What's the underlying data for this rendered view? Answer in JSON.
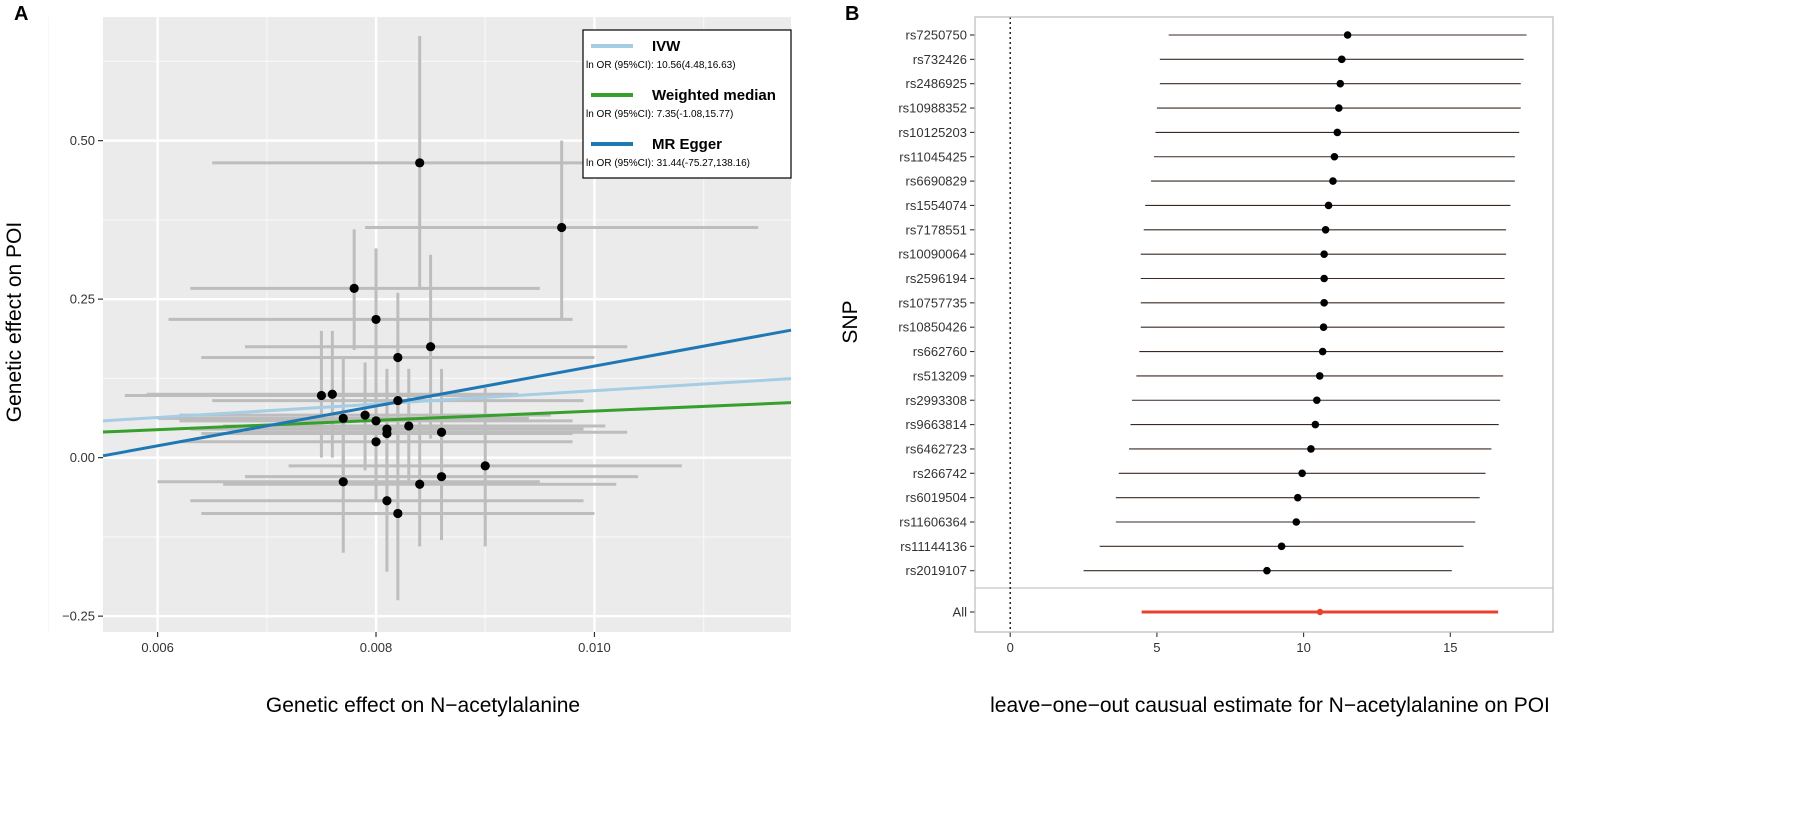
{
  "chart_data": [
    {
      "panel": "A",
      "type": "scatter",
      "xlabel": "Genetic effect on N−acetylalanine",
      "ylabel": "Genetic effect on POI",
      "xlim": [
        0.0055,
        0.0118
      ],
      "ylim": [
        -0.275,
        0.695
      ],
      "xticks": [
        0.006,
        0.008,
        0.01
      ],
      "xtick_labels": [
        "0.006",
        "0.008",
        "0.010"
      ],
      "yticks": [
        -0.25,
        0.0,
        0.25,
        0.5
      ],
      "ytick_labels": [
        "−0.25",
        "0.00",
        "0.25",
        "0.50"
      ],
      "points": [
        {
          "x": 0.0084,
          "y": 0.465,
          "xlo": 0.0065,
          "xhi": 0.0104,
          "ylo": 0.265,
          "yhi": 0.665
        },
        {
          "x": 0.0097,
          "y": 0.363,
          "xlo": 0.0079,
          "xhi": 0.0115,
          "ylo": 0.22,
          "yhi": 0.5
        },
        {
          "x": 0.0078,
          "y": 0.267,
          "xlo": 0.0063,
          "xhi": 0.0095,
          "ylo": 0.17,
          "yhi": 0.36
        },
        {
          "x": 0.008,
          "y": 0.218,
          "xlo": 0.0061,
          "xhi": 0.0098,
          "ylo": 0.1,
          "yhi": 0.33
        },
        {
          "x": 0.0085,
          "y": 0.175,
          "xlo": 0.0068,
          "xhi": 0.0103,
          "ylo": 0.03,
          "yhi": 0.32
        },
        {
          "x": 0.0082,
          "y": 0.158,
          "xlo": 0.0064,
          "xhi": 0.01,
          "ylo": 0.05,
          "yhi": 0.26
        },
        {
          "x": 0.0075,
          "y": 0.098,
          "xlo": 0.0057,
          "xhi": 0.0093,
          "ylo": 0.0,
          "yhi": 0.2
        },
        {
          "x": 0.0076,
          "y": 0.1,
          "xlo": 0.0059,
          "xhi": 0.0093,
          "ylo": 0.0,
          "yhi": 0.2
        },
        {
          "x": 0.0082,
          "y": 0.09,
          "xlo": 0.0065,
          "xhi": 0.0099,
          "ylo": 0.0,
          "yhi": 0.18
        },
        {
          "x": 0.0079,
          "y": 0.067,
          "xlo": 0.0062,
          "xhi": 0.0096,
          "ylo": -0.02,
          "yhi": 0.15
        },
        {
          "x": 0.0077,
          "y": 0.062,
          "xlo": 0.006,
          "xhi": 0.0094,
          "ylo": -0.03,
          "yhi": 0.16
        },
        {
          "x": 0.008,
          "y": 0.058,
          "xlo": 0.0062,
          "xhi": 0.0098,
          "ylo": -0.04,
          "yhi": 0.15
        },
        {
          "x": 0.0083,
          "y": 0.05,
          "xlo": 0.0066,
          "xhi": 0.0101,
          "ylo": -0.04,
          "yhi": 0.14
        },
        {
          "x": 0.0081,
          "y": 0.045,
          "xlo": 0.0063,
          "xhi": 0.0099,
          "ylo": -0.05,
          "yhi": 0.14
        },
        {
          "x": 0.0081,
          "y": 0.038,
          "xlo": 0.0064,
          "xhi": 0.0098,
          "ylo": -0.06,
          "yhi": 0.13
        },
        {
          "x": 0.0086,
          "y": 0.04,
          "xlo": 0.0068,
          "xhi": 0.0103,
          "ylo": -0.06,
          "yhi": 0.14
        },
        {
          "x": 0.008,
          "y": 0.025,
          "xlo": 0.0062,
          "xhi": 0.0098,
          "ylo": -0.07,
          "yhi": 0.12
        },
        {
          "x": 0.009,
          "y": -0.013,
          "xlo": 0.0072,
          "xhi": 0.0108,
          "ylo": -0.14,
          "yhi": 0.11
        },
        {
          "x": 0.0086,
          "y": -0.03,
          "xlo": 0.0068,
          "xhi": 0.0104,
          "ylo": -0.13,
          "yhi": 0.07
        },
        {
          "x": 0.0077,
          "y": -0.038,
          "xlo": 0.006,
          "xhi": 0.0095,
          "ylo": -0.15,
          "yhi": 0.07
        },
        {
          "x": 0.0084,
          "y": -0.042,
          "xlo": 0.0066,
          "xhi": 0.0102,
          "ylo": -0.14,
          "yhi": 0.06
        },
        {
          "x": 0.0081,
          "y": -0.068,
          "xlo": 0.0063,
          "xhi": 0.0099,
          "ylo": -0.18,
          "yhi": 0.04
        },
        {
          "x": 0.0082,
          "y": -0.088,
          "xlo": 0.0064,
          "xhi": 0.01,
          "ylo": -0.225,
          "yhi": 0.05
        }
      ],
      "lines": [
        {
          "name": "IVW",
          "label": "ln OR (95%CI): 10.56(4.48,16.63)",
          "slope": 10.56,
          "intercept": 0.0,
          "color": "#a6cde3"
        },
        {
          "name": "Weighted median",
          "label": "ln OR (95%CI): 7.35(-1.08,15.77)",
          "slope": 7.35,
          "intercept": 0.0,
          "color": "#36a02c"
        },
        {
          "name": "MR Egger",
          "label": "ln OR (95%CI): 31.44(-75.27,138.16)",
          "slope": 31.44,
          "intercept": -0.17,
          "color": "#1f78b4"
        }
      ],
      "legend_position": "top-right"
    },
    {
      "panel": "B",
      "type": "forest",
      "xlabel": "leave−one−out causual estimate for  N−acetylalanine on POI",
      "ylabel": "SNP",
      "xlim": [
        -1.2,
        18.5
      ],
      "xticks": [
        0,
        5,
        10,
        15
      ],
      "xtick_labels": [
        "0",
        "5",
        "10",
        "15"
      ],
      "rows": [
        {
          "snp": "rs7250750",
          "est": 11.5,
          "lo": 5.4,
          "hi": 17.6
        },
        {
          "snp": "rs732426",
          "est": 11.3,
          "lo": 5.1,
          "hi": 17.5
        },
        {
          "snp": "rs2486925",
          "est": 11.25,
          "lo": 5.1,
          "hi": 17.4
        },
        {
          "snp": "rs10988352",
          "est": 11.2,
          "lo": 5.0,
          "hi": 17.4
        },
        {
          "snp": "rs10125203",
          "est": 11.15,
          "lo": 4.95,
          "hi": 17.35
        },
        {
          "snp": "rs11045425",
          "est": 11.05,
          "lo": 4.9,
          "hi": 17.2
        },
        {
          "snp": "rs6690829",
          "est": 11.0,
          "lo": 4.8,
          "hi": 17.2
        },
        {
          "snp": "rs1554074",
          "est": 10.85,
          "lo": 4.6,
          "hi": 17.05
        },
        {
          "snp": "rs7178551",
          "est": 10.75,
          "lo": 4.55,
          "hi": 16.9
        },
        {
          "snp": "rs10090064",
          "est": 10.7,
          "lo": 4.45,
          "hi": 16.9
        },
        {
          "snp": "rs2596194",
          "est": 10.7,
          "lo": 4.45,
          "hi": 16.85
        },
        {
          "snp": "rs10757735",
          "est": 10.7,
          "lo": 4.45,
          "hi": 16.85
        },
        {
          "snp": "rs10850426",
          "est": 10.68,
          "lo": 4.45,
          "hi": 16.85
        },
        {
          "snp": "rs662760",
          "est": 10.65,
          "lo": 4.4,
          "hi": 16.8
        },
        {
          "snp": "rs513209",
          "est": 10.55,
          "lo": 4.3,
          "hi": 16.8
        },
        {
          "snp": "rs2993308",
          "est": 10.45,
          "lo": 4.15,
          "hi": 16.7
        },
        {
          "snp": "rs9663814",
          "est": 10.4,
          "lo": 4.1,
          "hi": 16.65
        },
        {
          "snp": "rs6462723",
          "est": 10.25,
          "lo": 4.05,
          "hi": 16.4
        },
        {
          "snp": "rs266742",
          "est": 9.95,
          "lo": 3.7,
          "hi": 16.2
        },
        {
          "snp": "rs6019504",
          "est": 9.8,
          "lo": 3.6,
          "hi": 16.0
        },
        {
          "snp": "rs11606364",
          "est": 9.75,
          "lo": 3.6,
          "hi": 15.85
        },
        {
          "snp": "rs11144136",
          "est": 9.25,
          "lo": 3.05,
          "hi": 15.45
        },
        {
          "snp": "rs2019107",
          "est": 8.75,
          "lo": 2.5,
          "hi": 15.05
        }
      ],
      "overall": {
        "snp": "All",
        "est": 10.56,
        "lo": 4.48,
        "hi": 16.63,
        "color": "#e8412d"
      }
    }
  ]
}
